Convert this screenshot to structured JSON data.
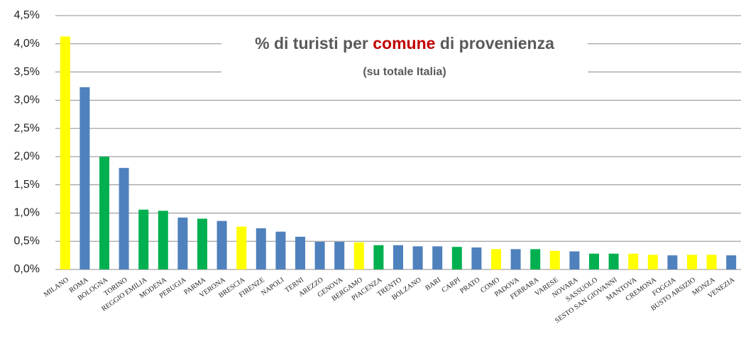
{
  "chart_data": {
    "type": "bar",
    "title": [
      "% di turisti per",
      "comune",
      "di provenienza"
    ],
    "title_colors": [
      "#595959",
      "#c00000",
      "#595959"
    ],
    "subtitle": "(su totale Italia)",
    "categories": [
      "MILANO",
      "ROMA",
      "BOLOGNA",
      "TORINO",
      "REGGIO EMILIA",
      "MODENA",
      "PERUGIA",
      "PARMA",
      "VERONA",
      "BRESCIA",
      "FIRENZE",
      "NAPOLI",
      "TERNI",
      "AREZZO",
      "GENOVA",
      "BERGAMO",
      "PIACENZA",
      "TRENTO",
      "BOLZANO",
      "BARI",
      "CARPI",
      "PRATO",
      "COMO",
      "PADOVA",
      "FERRARA",
      "VARESE",
      "NOVARA",
      "SASSUOLO",
      "SESTO SAN GIOVANNI",
      "MANTOVA",
      "CREMONA",
      "FOGGIA",
      "BUSTO ARSIZIO",
      "MONZA",
      "VENEZIA"
    ],
    "values": [
      4.13,
      3.23,
      2.0,
      1.8,
      1.06,
      1.04,
      0.92,
      0.9,
      0.86,
      0.76,
      0.73,
      0.67,
      0.58,
      0.49,
      0.49,
      0.48,
      0.43,
      0.43,
      0.41,
      0.41,
      0.4,
      0.39,
      0.36,
      0.36,
      0.36,
      0.33,
      0.32,
      0.28,
      0.28,
      0.28,
      0.26,
      0.25,
      0.26,
      0.26,
      0.25
    ],
    "colors": [
      "#ffff00",
      "#4f81bd",
      "#00b050",
      "#4f81bd",
      "#00b050",
      "#00b050",
      "#4f81bd",
      "#00b050",
      "#4f81bd",
      "#ffff00",
      "#4f81bd",
      "#4f81bd",
      "#4f81bd",
      "#4f81bd",
      "#4f81bd",
      "#ffff00",
      "#00b050",
      "#4f81bd",
      "#4f81bd",
      "#4f81bd",
      "#00b050",
      "#4f81bd",
      "#ffff00",
      "#4f81bd",
      "#00b050",
      "#ffff00",
      "#4f81bd",
      "#00b050",
      "#00b050",
      "#ffff00",
      "#ffff00",
      "#4f81bd",
      "#ffff00",
      "#ffff00",
      "#4f81bd"
    ],
    "ylim": [
      0,
      4.5
    ],
    "yticks": [
      {
        "value": 0,
        "label": "0,0%"
      },
      {
        "value": 0.5,
        "label": "0,5%"
      },
      {
        "value": 1,
        "label": "1,0%"
      },
      {
        "value": 1.5,
        "label": "1,5%"
      },
      {
        "value": 2,
        "label": "2,0%"
      },
      {
        "value": 2.5,
        "label": "2,5%"
      },
      {
        "value": 3,
        "label": "3,0%"
      },
      {
        "value": 3.5,
        "label": "3,5%"
      },
      {
        "value": 4,
        "label": "4,0%"
      },
      {
        "value": 4.5,
        "label": "4,5%"
      }
    ],
    "grid": true
  }
}
